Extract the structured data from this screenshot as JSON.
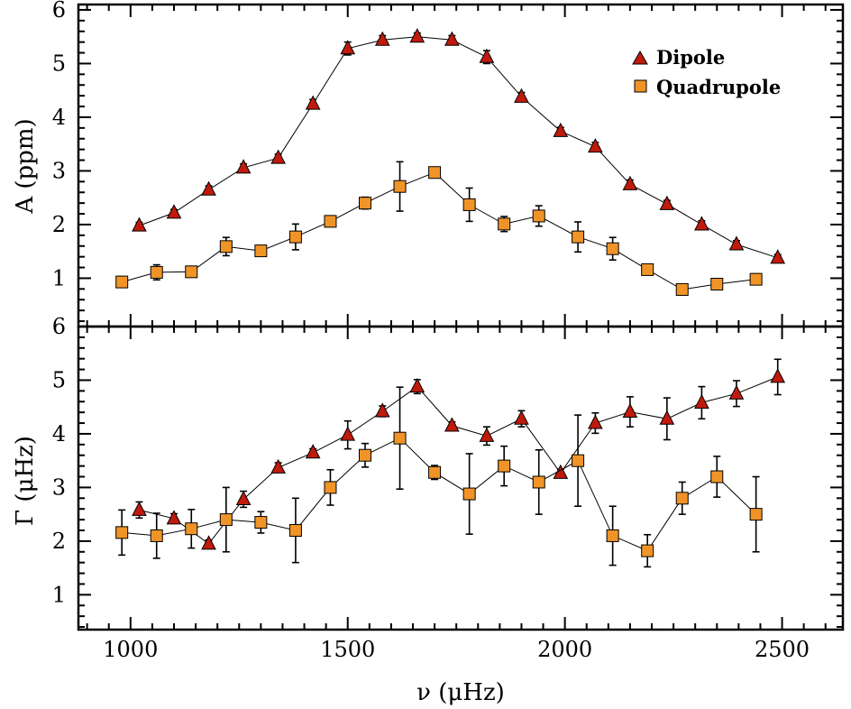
{
  "chart_data": [
    {
      "type": "scatter",
      "panel": "top",
      "ylabel": "A (ppm)",
      "xlabel": "",
      "xlim": [
        880,
        2640
      ],
      "ylim": [
        0.1,
        6.1
      ],
      "x_ticks": [
        1000,
        1500,
        2000,
        2500
      ],
      "y_ticks": [
        1,
        2,
        3,
        4,
        5,
        6
      ],
      "legend": {
        "position": "top-right",
        "entries": [
          {
            "name": "Dipole",
            "marker": "triangle",
            "color": "#c01a0c"
          },
          {
            "name": "Quadrupole",
            "marker": "square",
            "color": "#f09428"
          }
        ]
      },
      "series": [
        {
          "name": "Dipole",
          "marker": "triangle",
          "color": "#c01a0c",
          "x": [
            1020,
            1100,
            1180,
            1260,
            1340,
            1420,
            1500,
            1580,
            1660,
            1740,
            1820,
            1900,
            1990,
            2070,
            2150,
            2235,
            2315,
            2395,
            2490
          ],
          "y": [
            1.98,
            2.22,
            2.65,
            3.06,
            3.24,
            4.25,
            5.28,
            5.44,
            5.5,
            5.44,
            5.12,
            4.38,
            3.74,
            3.45,
            2.75,
            2.38,
            2.0,
            1.63,
            1.38
          ],
          "err": [
            0.06,
            0.06,
            0.07,
            0.07,
            0.07,
            0.08,
            0.12,
            0.08,
            0.07,
            0.08,
            0.12,
            0.08,
            0.07,
            0.08,
            0.08,
            0.07,
            0.07,
            0.07,
            0.06
          ]
        },
        {
          "name": "Quadrupole",
          "marker": "square",
          "color": "#f09428",
          "x": [
            980,
            1060,
            1140,
            1220,
            1300,
            1380,
            1460,
            1540,
            1620,
            1700,
            1780,
            1860,
            1940,
            2030,
            2110,
            2190,
            2270,
            2350,
            2440
          ],
          "y": [
            0.93,
            1.11,
            1.12,
            1.59,
            1.51,
            1.77,
            2.06,
            2.4,
            2.71,
            2.97,
            2.37,
            2.01,
            2.16,
            1.77,
            1.55,
            1.16,
            0.79,
            0.89,
            0.98
          ],
          "err": [
            0.1,
            0.14,
            0.1,
            0.17,
            0.1,
            0.24,
            0.1,
            0.11,
            0.46,
            0.06,
            0.31,
            0.14,
            0.19,
            0.28,
            0.21,
            0.06,
            0.05,
            0.08,
            0.1
          ]
        }
      ]
    },
    {
      "type": "scatter",
      "panel": "bottom",
      "ylabel": "Γ (μHz)",
      "xlabel": "ν (μHz)",
      "xlim": [
        880,
        2640
      ],
      "ylim": [
        0.35,
        6.0
      ],
      "x_ticks": [
        1000,
        1500,
        2000,
        2500
      ],
      "y_ticks": [
        1,
        2,
        3,
        4,
        5,
        6
      ],
      "series": [
        {
          "name": "Dipole",
          "marker": "triangle",
          "color": "#c01a0c",
          "x": [
            1020,
            1100,
            1180,
            1260,
            1340,
            1420,
            1500,
            1580,
            1660,
            1740,
            1820,
            1900,
            1990,
            2070,
            2150,
            2235,
            2315,
            2395,
            2490
          ],
          "y": [
            2.58,
            2.42,
            1.95,
            2.78,
            3.37,
            3.65,
            3.98,
            4.42,
            4.88,
            4.15,
            3.96,
            4.28,
            3.27,
            4.2,
            4.41,
            4.28,
            4.58,
            4.75,
            5.06
          ],
          "err": [
            0.15,
            0.09,
            0.07,
            0.15,
            0.09,
            0.07,
            0.26,
            0.1,
            0.13,
            0.07,
            0.17,
            0.15,
            0.07,
            0.19,
            0.28,
            0.39,
            0.3,
            0.24,
            0.33
          ]
        },
        {
          "name": "Quadrupole",
          "marker": "square",
          "color": "#f09428",
          "x": [
            980,
            1060,
            1140,
            1220,
            1300,
            1380,
            1460,
            1540,
            1620,
            1700,
            1780,
            1860,
            1940,
            2030,
            2110,
            2190,
            2270,
            2350,
            2440
          ],
          "y": [
            2.16,
            2.1,
            2.23,
            2.4,
            2.35,
            2.2,
            3.0,
            3.6,
            3.92,
            3.28,
            2.88,
            3.4,
            3.1,
            3.5,
            2.1,
            1.82,
            2.8,
            3.2,
            2.5
          ],
          "err": [
            0.42,
            0.42,
            0.36,
            0.6,
            0.2,
            0.6,
            0.33,
            0.22,
            0.95,
            0.13,
            0.75,
            0.37,
            0.6,
            0.85,
            0.55,
            0.3,
            0.3,
            0.38,
            0.7
          ]
        }
      ]
    }
  ]
}
